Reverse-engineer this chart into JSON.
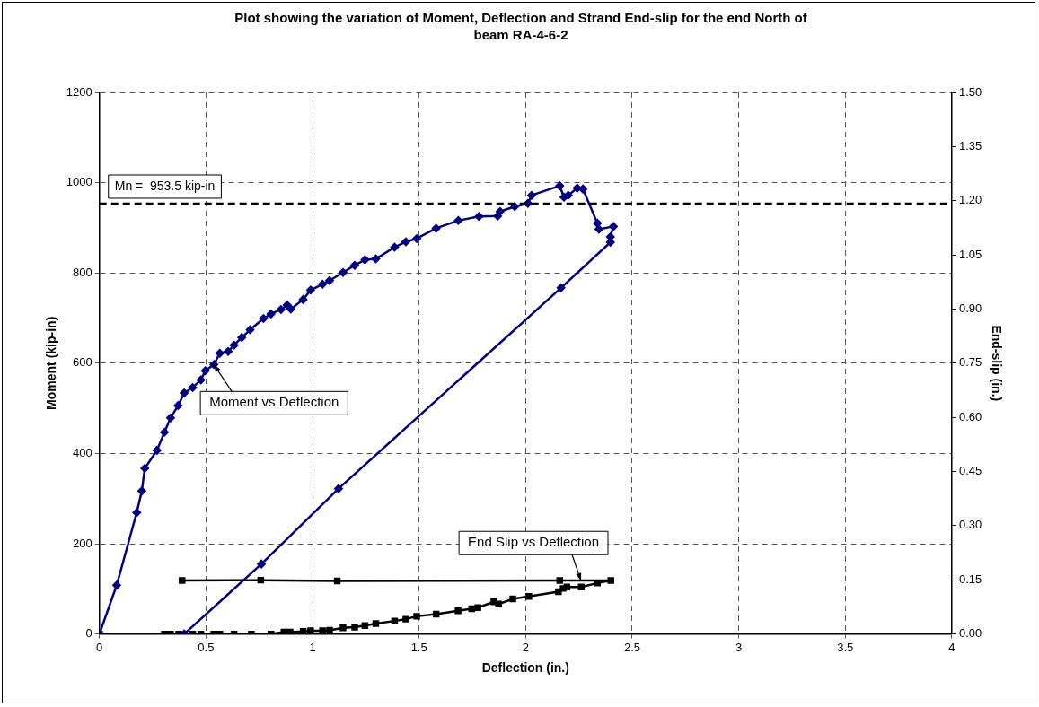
{
  "chart_data": {
    "type": "line",
    "title": "Plot showing the variation of Moment, Deflection and Strand End-slip for the end North of beam RA-4-6-2",
    "xlabel": "Deflection (in.)",
    "ylabel": "Moment (kip-in)",
    "y2label": "End-slip (in.)",
    "xlim": [
      0,
      4
    ],
    "xticks": [
      0,
      0.5,
      1,
      1.5,
      2,
      2.5,
      3,
      3.5,
      4
    ],
    "ylim": [
      0,
      1200
    ],
    "yticks": [
      0,
      200,
      400,
      600,
      800,
      1000,
      1200
    ],
    "y2lim": [
      0,
      1.5
    ],
    "y2ticks": [
      {
        "value": 0,
        "label": "0.00"
      },
      {
        "value": 0.15,
        "label": "0.15"
      },
      {
        "value": 0.3,
        "label": "0.30"
      },
      {
        "value": 0.45,
        "label": "0.45"
      },
      {
        "value": 0.6,
        "label": "0.60"
      },
      {
        "value": 0.75,
        "label": "0.75"
      },
      {
        "value": 0.9,
        "label": "0.90"
      },
      {
        "value": 1.05,
        "label": "1.05"
      },
      {
        "value": 1.2,
        "label": "1.20"
      },
      {
        "value": 1.35,
        "label": "1.35"
      },
      {
        "value": 1.5,
        "label": "1.50"
      }
    ],
    "grid": true,
    "legend": false,
    "line_style": "solid",
    "ref_lines": [
      {
        "axis": "y",
        "value": 953.5,
        "label": "Mn =  953.5 kip-in",
        "line_style": "dashed",
        "color": "#000000"
      }
    ],
    "annotations": [
      {
        "text": "Moment vs Deflection",
        "x": 0.537,
        "y": 597
      },
      {
        "text": "End Slip vs Deflection",
        "x": 2.26,
        "y": 118
      }
    ],
    "series": [
      {
        "marker": "diamond",
        "color": "#000080",
        "x": [
          0,
          0.081,
          0.175,
          0.199,
          0.213,
          0.27,
          0.305,
          0.334,
          0.369,
          0.398,
          0.4375,
          0.476,
          0.497,
          0.537,
          0.565,
          0.604,
          0.632,
          0.668,
          0.707,
          0.77,
          0.805,
          0.852,
          0.881,
          0.898,
          0.956,
          0.991,
          1.047,
          1.08,
          1.143,
          1.198,
          1.246,
          1.297,
          1.385,
          1.438,
          1.489,
          1.58,
          1.684,
          1.781,
          1.869,
          1.88,
          1.949,
          2.011,
          2.028,
          2.16,
          2.18,
          2.2,
          2.242,
          2.269,
          2.337,
          2.344,
          2.412,
          2.398,
          2.398,
          2.166,
          1.122,
          0.76,
          0.398
        ],
        "values": [
          0,
          108,
          269,
          317,
          367,
          407,
          447,
          479,
          506,
          534,
          546,
          563,
          583,
          597,
          622,
          626,
          640,
          657,
          674,
          699,
          709,
          719,
          729,
          720,
          741,
          762,
          775,
          783,
          801,
          817,
          829,
          831,
          857,
          869,
          876,
          899,
          916,
          925,
          926,
          936,
          947,
          954,
          972,
          993,
          968,
          972,
          988,
          986,
          910,
          897,
          903,
          880,
          868,
          767,
          322,
          155,
          0
        ]
      },
      {
        "marker": "square",
        "color": "#000000",
        "axis": "y2",
        "x": [
          0,
          0.305,
          0.334,
          0.372,
          0.4375,
          0.476,
          0.537,
          0.565,
          0.632,
          0.713,
          0.805,
          0.866,
          0.895,
          0.956,
          0.991,
          1.047,
          1.08,
          1.143,
          1.198,
          1.246,
          1.297,
          1.385,
          1.438,
          1.489,
          1.58,
          1.683,
          1.747,
          1.776,
          1.851,
          1.873,
          1.94,
          2.015,
          2.154,
          2.176,
          2.194,
          2.261,
          2.337,
          2.4,
          2.16,
          1.116,
          0.757,
          0.388
        ],
        "values": [
          0,
          0,
          0,
          0,
          0,
          0,
          0,
          0,
          0,
          0,
          0,
          0.005,
          0.005,
          0.007,
          0.009,
          0.009,
          0.01,
          0.017,
          0.019,
          0.023,
          0.029,
          0.036,
          0.041,
          0.049,
          0.055,
          0.064,
          0.07,
          0.073,
          0.089,
          0.083,
          0.097,
          0.104,
          0.117,
          0.126,
          0.13,
          0.13,
          0.141,
          0.148,
          0.148,
          0.147,
          0.149,
          0.148
        ]
      }
    ]
  }
}
